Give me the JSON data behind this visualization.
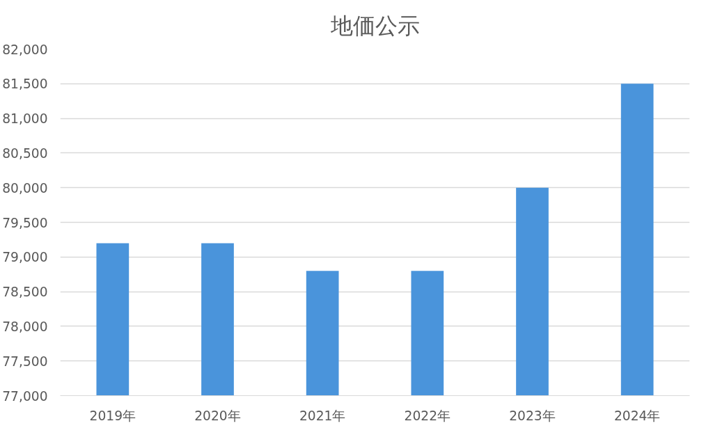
{
  "chart_data": {
    "type": "bar",
    "title": "地価公示",
    "categories": [
      "2019年",
      "2020年",
      "2021年",
      "2022年",
      "2023年",
      "2024年"
    ],
    "values": [
      79200,
      79200,
      78800,
      78800,
      80000,
      81500
    ],
    "color": "#4a94db",
    "ylim": [
      77000,
      82000
    ],
    "yticks": [
      {
        "value": 77000,
        "label": "77,000"
      },
      {
        "value": 77500,
        "label": "77,500"
      },
      {
        "value": 78000,
        "label": "78,000"
      },
      {
        "value": 78500,
        "label": "78,500"
      },
      {
        "value": 79000,
        "label": "79,000"
      },
      {
        "value": 79500,
        "label": "79,500"
      },
      {
        "value": 80000,
        "label": "80,000"
      },
      {
        "value": 80500,
        "label": "80,500"
      },
      {
        "value": 81000,
        "label": "81,000"
      },
      {
        "value": 81500,
        "label": "81,500"
      },
      {
        "value": 82000,
        "label": "82,000"
      }
    ],
    "grid": "y"
  }
}
